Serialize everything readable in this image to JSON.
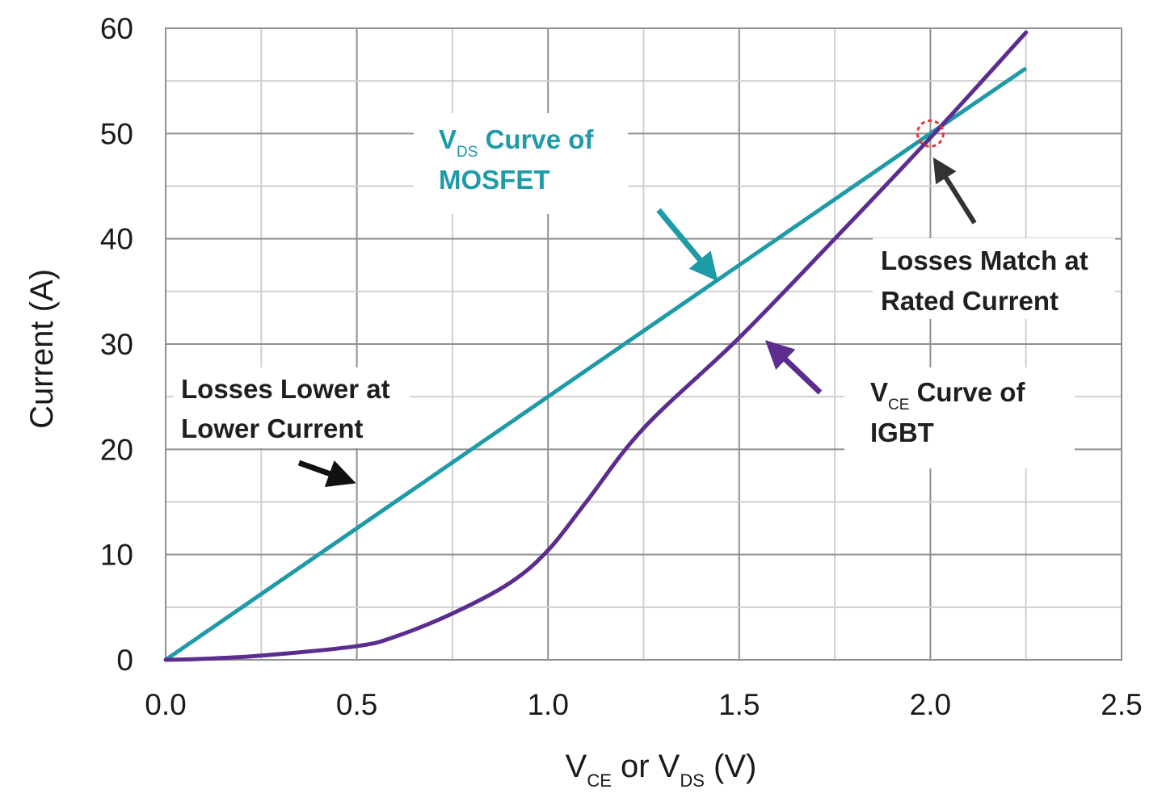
{
  "chart_data": {
    "type": "line",
    "xlabel": {
      "main1": "V",
      "sub1": "CE",
      "mid": " or V",
      "sub2": "DS",
      "end": " (V)"
    },
    "ylabel": "Current (A)",
    "xlim": [
      0,
      2.5
    ],
    "ylim": [
      0,
      60
    ],
    "x_ticks": [
      "0.0",
      "0.5",
      "1.0",
      "1.5",
      "2.0",
      "2.5"
    ],
    "y_ticks": [
      "0",
      "10",
      "20",
      "30",
      "40",
      "50",
      "60"
    ],
    "grid": true,
    "series": [
      {
        "name": "MOSFET",
        "color": "#1f9aa7",
        "points": [
          [
            0.0,
            0.0
          ],
          [
            2.0,
            50.0
          ],
          [
            2.25,
            56.2
          ]
        ]
      },
      {
        "name": "IGBT",
        "color": "#5b2d8e",
        "points": [
          [
            0.0,
            0.0
          ],
          [
            0.1,
            0.1
          ],
          [
            0.25,
            0.4
          ],
          [
            0.5,
            1.3
          ],
          [
            0.6,
            2.2
          ],
          [
            0.75,
            4.4
          ],
          [
            0.9,
            7.3
          ],
          [
            1.0,
            10.4
          ],
          [
            1.1,
            15.0
          ],
          [
            1.25,
            22.0
          ],
          [
            1.5,
            30.6
          ],
          [
            1.75,
            40.0
          ],
          [
            2.0,
            49.6
          ],
          [
            2.25,
            59.6
          ]
        ]
      }
    ],
    "annotations": {
      "mosfet_label": {
        "v": "V",
        "sub": "DS",
        "rest": " Curve of",
        "line2": "MOSFET"
      },
      "igbt_label": {
        "v": "V",
        "sub": "CE",
        "rest": " Curve of",
        "line2": "IGBT"
      },
      "lower_loss": {
        "line1": "Losses Lower at",
        "line2": "Lower Current"
      },
      "match_loss": {
        "line1": "Losses Match at",
        "line2": "Rated Current"
      }
    },
    "marker": {
      "x": 2.0,
      "y": 50.0,
      "color": "#e53935"
    }
  }
}
